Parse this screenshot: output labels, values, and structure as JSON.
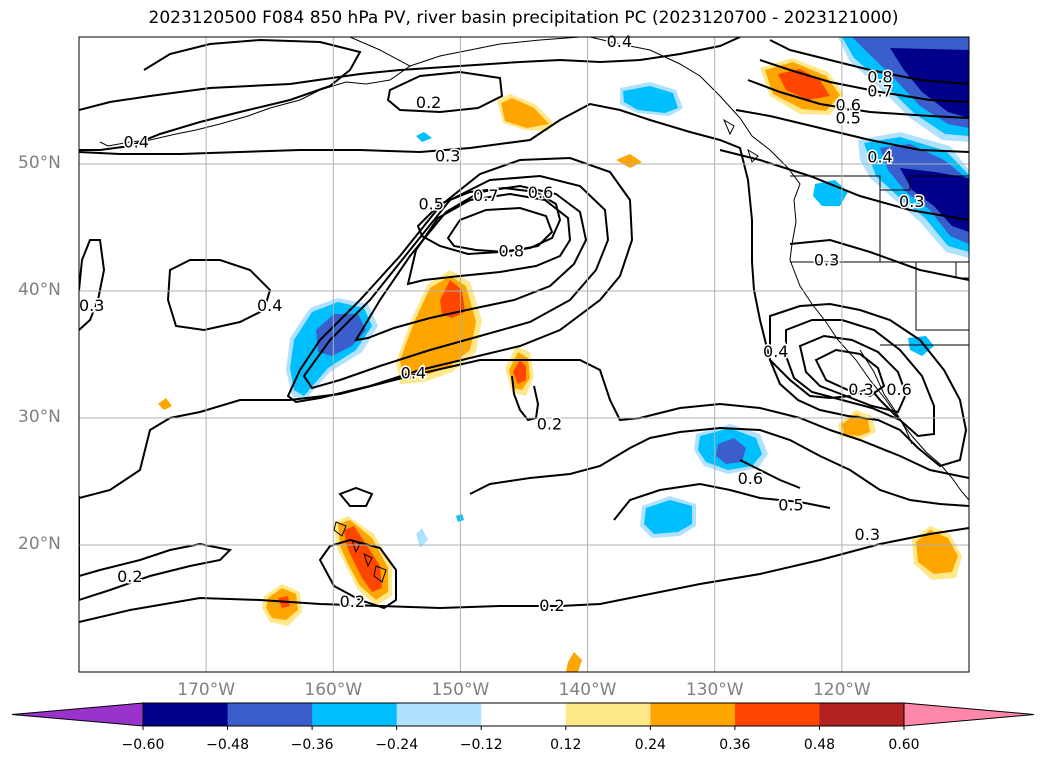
{
  "title": "2023120500 F084 850 hPa PV, river basin precipitation PC (2023120700 - 2023121000)",
  "axes": {
    "lat_labels": [
      {
        "text": "50°N",
        "lat": 50
      },
      {
        "text": "40°N",
        "lat": 40
      },
      {
        "text": "30°N",
        "lat": 30
      },
      {
        "text": "20°N",
        "lat": 20
      }
    ],
    "lon_labels": [
      {
        "text": "170°W",
        "lon": -170
      },
      {
        "text": "160°W",
        "lon": -160
      },
      {
        "text": "150°W",
        "lon": -150
      },
      {
        "text": "140°W",
        "lon": -140
      },
      {
        "text": "130°W",
        "lon": -130
      },
      {
        "text": "120°W",
        "lon": -120
      }
    ],
    "lon_range": [
      -180,
      -110
    ],
    "lat_range": [
      10,
      60
    ],
    "grid": true
  },
  "colorbar": {
    "levels": [
      -0.6,
      -0.48,
      -0.36,
      -0.24,
      -0.12,
      0.12,
      0.24,
      0.36,
      0.48,
      0.6
    ],
    "tick_labels": [
      "−0.60",
      "−0.48",
      "−0.36",
      "−0.24",
      "−0.12",
      "0.12",
      "0.24",
      "0.36",
      "0.48",
      "0.60"
    ],
    "colors": [
      "#9933cc",
      "#00008b",
      "#3a5fcd",
      "#00bfff",
      "#b0e2ff",
      "#ffffff",
      "#ffe88a",
      "#ffa500",
      "#ff4500",
      "#b22222",
      "#ff88aa"
    ],
    "extend": "both"
  },
  "contour_labels": [
    {
      "text": "0.2",
      "lon": -152.5,
      "lat": 54.8
    },
    {
      "text": "0.3",
      "lon": -151,
      "lat": 50.6
    },
    {
      "text": "0.4",
      "lon": -175.5,
      "lat": 51.7
    },
    {
      "text": "0.5",
      "lon": -152.3,
      "lat": 46.8
    },
    {
      "text": "0.6",
      "lon": -143.7,
      "lat": 47.7
    },
    {
      "text": "0.7",
      "lon": -148,
      "lat": 47.5
    },
    {
      "text": "0.8",
      "lon": -146,
      "lat": 43.1
    },
    {
      "text": "0.3",
      "lon": -179,
      "lat": 38.8
    },
    {
      "text": "0.4",
      "lon": -165,
      "lat": 38.8
    },
    {
      "text": "0.4",
      "lon": -153.7,
      "lat": 33.5
    },
    {
      "text": "0.2",
      "lon": -143,
      "lat": 29.5
    },
    {
      "text": "0.4",
      "lon": -137.5,
      "lat": 59.6
    },
    {
      "text": "0.8",
      "lon": -117,
      "lat": 56.8
    },
    {
      "text": "0.7",
      "lon": -117,
      "lat": 55.7
    },
    {
      "text": "0.6",
      "lon": -119.5,
      "lat": 54.6
    },
    {
      "text": "0.5",
      "lon": -119.5,
      "lat": 53.6
    },
    {
      "text": "0.4",
      "lon": -117,
      "lat": 50.5
    },
    {
      "text": "0.3",
      "lon": -114.5,
      "lat": 47
    },
    {
      "text": "0.3",
      "lon": -121.2,
      "lat": 42.4
    },
    {
      "text": "0.4",
      "lon": -125.2,
      "lat": 35.2
    },
    {
      "text": "0.3",
      "lon": -118.5,
      "lat": 32.2
    },
    {
      "text": "0.6",
      "lon": -115.5,
      "lat": 32.2
    },
    {
      "text": "0.6",
      "lon": -127.2,
      "lat": 25.2
    },
    {
      "text": "0.5",
      "lon": -124,
      "lat": 23.1
    },
    {
      "text": "0.3",
      "lon": -118,
      "lat": 20.8
    },
    {
      "text": "0.2",
      "lon": -176,
      "lat": 17.5
    },
    {
      "text": "0.2",
      "lon": -158.5,
      "lat": 15.5
    },
    {
      "text": "0.2",
      "lon": -142.8,
      "lat": 15.2
    }
  ]
}
